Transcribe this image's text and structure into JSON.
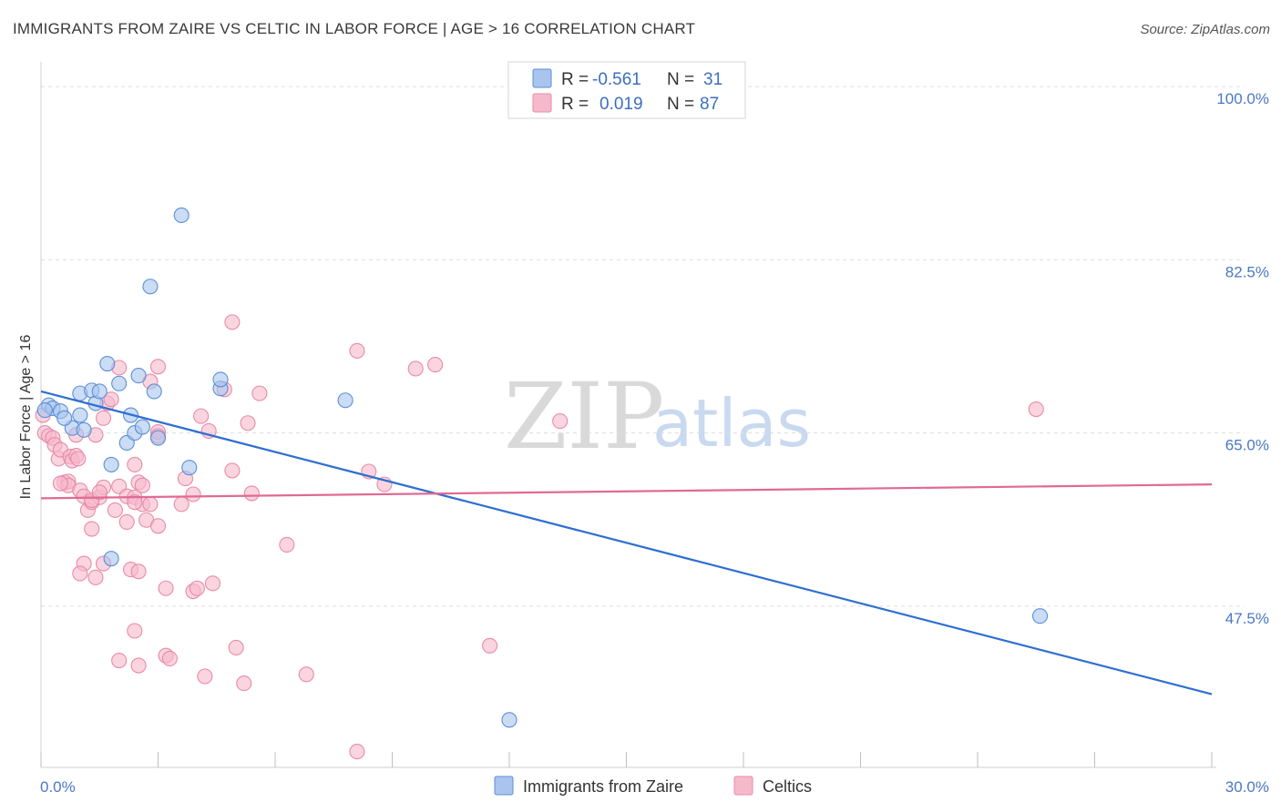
{
  "header": {
    "title": "IMMIGRANTS FROM ZAIRE VS CELTIC IN LABOR FORCE | AGE > 16 CORRELATION CHART",
    "source": "Source: ZipAtlas.com"
  },
  "watermark": {
    "zip": "ZIP",
    "atlas": "atlas"
  },
  "colors": {
    "blue_fill": "#a9c4ee",
    "blue_stroke": "#5b8fd6",
    "blue_line": "#2f6fd0",
    "pink_fill": "#f6b9cc",
    "pink_stroke": "#e88aa8",
    "pink_line": "#e06a94",
    "grid": "#dddddd",
    "tick_text": "#4a78c4"
  },
  "legend": {
    "rows": [
      {
        "r_label": "R =",
        "r_value": "-0.561",
        "n_label": "N =",
        "n_value": "31"
      },
      {
        "r_label": "R =",
        "r_value": "0.019",
        "n_label": "N =",
        "n_value": "87"
      }
    ]
  },
  "chart_data": {
    "type": "scatter",
    "title": "IMMIGRANTS FROM ZAIRE VS CELTIC IN LABOR FORCE | AGE > 16 CORRELATION CHART",
    "xlabel": "",
    "ylabel": "In Labor Force | Age > 16",
    "xlim": [
      0,
      30
    ],
    "ylim": [
      31.2,
      102.5
    ],
    "x_tick_labels": [
      "0.0%",
      "30.0%"
    ],
    "y_ticks": [
      100.0,
      82.5,
      65.0,
      47.5
    ],
    "y_tick_labels": [
      "100.0%",
      "82.5%",
      "65.0%",
      "47.5%"
    ],
    "x_minor_ticks": [
      0,
      3,
      6,
      9,
      12,
      15,
      18,
      21,
      24,
      27,
      30
    ],
    "series": [
      {
        "name": "Immigrants from Zaire",
        "color": "blue",
        "r": -0.561,
        "n": 31,
        "trend": {
          "x": [
            0,
            30
          ],
          "y": [
            69.2,
            38.6
          ]
        },
        "points": [
          [
            0.2,
            67.8
          ],
          [
            0.3,
            67.5
          ],
          [
            0.5,
            67.2
          ],
          [
            0.8,
            65.5
          ],
          [
            0.6,
            66.5
          ],
          [
            1.0,
            66.8
          ],
          [
            1.1,
            65.3
          ],
          [
            1.0,
            69.0
          ],
          [
            1.3,
            69.3
          ],
          [
            1.4,
            68.0
          ],
          [
            1.5,
            69.2
          ],
          [
            1.7,
            72.0
          ],
          [
            2.0,
            70.0
          ],
          [
            2.3,
            66.8
          ],
          [
            2.2,
            64.0
          ],
          [
            2.4,
            65.0
          ],
          [
            2.5,
            70.8
          ],
          [
            2.6,
            65.6
          ],
          [
            2.8,
            79.8
          ],
          [
            2.9,
            69.2
          ],
          [
            3.0,
            64.5
          ],
          [
            1.8,
            61.8
          ],
          [
            3.6,
            87.0
          ],
          [
            3.8,
            61.5
          ],
          [
            4.6,
            69.5
          ],
          [
            4.6,
            70.4
          ],
          [
            7.8,
            68.3
          ],
          [
            1.8,
            52.3
          ],
          [
            25.6,
            46.5
          ],
          [
            12.0,
            36.0
          ],
          [
            0.1,
            67.3
          ]
        ]
      },
      {
        "name": "Celtics",
        "color": "pink",
        "r": 0.019,
        "n": 87,
        "trend": {
          "x": [
            0,
            30
          ],
          "y": [
            58.4,
            59.8
          ]
        },
        "points": [
          [
            0.05,
            66.8
          ],
          [
            0.1,
            65.0
          ],
          [
            0.2,
            64.7
          ],
          [
            0.3,
            64.5
          ],
          [
            0.35,
            63.8
          ],
          [
            0.45,
            62.4
          ],
          [
            0.5,
            63.3
          ],
          [
            0.6,
            60.0
          ],
          [
            0.7,
            60.1
          ],
          [
            0.7,
            59.7
          ],
          [
            0.75,
            62.6
          ],
          [
            0.8,
            62.2
          ],
          [
            0.9,
            62.7
          ],
          [
            0.95,
            62.4
          ],
          [
            1.0,
            59.2
          ],
          [
            1.1,
            58.6
          ],
          [
            1.1,
            51.8
          ],
          [
            1.0,
            50.8
          ],
          [
            1.2,
            57.2
          ],
          [
            1.3,
            58.0
          ],
          [
            1.3,
            55.3
          ],
          [
            1.4,
            50.4
          ],
          [
            1.5,
            58.5
          ],
          [
            1.6,
            51.8
          ],
          [
            1.4,
            64.8
          ],
          [
            1.6,
            66.5
          ],
          [
            1.7,
            68.0
          ],
          [
            1.8,
            68.4
          ],
          [
            1.9,
            57.2
          ],
          [
            2.0,
            59.6
          ],
          [
            2.0,
            71.6
          ],
          [
            2.2,
            58.6
          ],
          [
            2.3,
            51.2
          ],
          [
            2.0,
            42.0
          ],
          [
            2.2,
            56.0
          ],
          [
            2.4,
            61.8
          ],
          [
            2.4,
            58.5
          ],
          [
            2.5,
            60.0
          ],
          [
            2.6,
            59.7
          ],
          [
            2.6,
            57.8
          ],
          [
            2.7,
            56.2
          ],
          [
            2.5,
            51.0
          ],
          [
            2.4,
            45.0
          ],
          [
            2.5,
            41.5
          ],
          [
            2.8,
            57.8
          ],
          [
            2.8,
            70.2
          ],
          [
            3.0,
            71.7
          ],
          [
            3.0,
            65.1
          ],
          [
            3.0,
            64.7
          ],
          [
            3.0,
            55.6
          ],
          [
            3.2,
            49.3
          ],
          [
            3.2,
            42.5
          ],
          [
            3.3,
            42.2
          ],
          [
            3.6,
            57.8
          ],
          [
            3.7,
            60.4
          ],
          [
            3.9,
            58.8
          ],
          [
            3.9,
            49.0
          ],
          [
            4.0,
            49.3
          ],
          [
            4.1,
            66.7
          ],
          [
            4.2,
            40.4
          ],
          [
            4.3,
            65.2
          ],
          [
            4.4,
            49.8
          ],
          [
            4.7,
            69.4
          ],
          [
            4.9,
            61.2
          ],
          [
            4.9,
            76.2
          ],
          [
            5.0,
            43.3
          ],
          [
            5.2,
            39.7
          ],
          [
            5.3,
            66.0
          ],
          [
            5.4,
            58.9
          ],
          [
            5.6,
            69.0
          ],
          [
            6.3,
            53.7
          ],
          [
            6.8,
            40.6
          ],
          [
            8.1,
            73.3
          ],
          [
            8.4,
            61.1
          ],
          [
            8.8,
            59.8
          ],
          [
            9.6,
            71.5
          ],
          [
            10.1,
            71.9
          ],
          [
            11.5,
            43.5
          ],
          [
            13.3,
            66.2
          ],
          [
            25.5,
            67.4
          ],
          [
            8.1,
            32.8
          ],
          [
            2.4,
            58.0
          ],
          [
            0.5,
            59.9
          ],
          [
            1.6,
            59.5
          ],
          [
            1.3,
            58.2
          ],
          [
            0.9,
            64.8
          ],
          [
            1.5,
            59.0
          ]
        ]
      }
    ]
  }
}
